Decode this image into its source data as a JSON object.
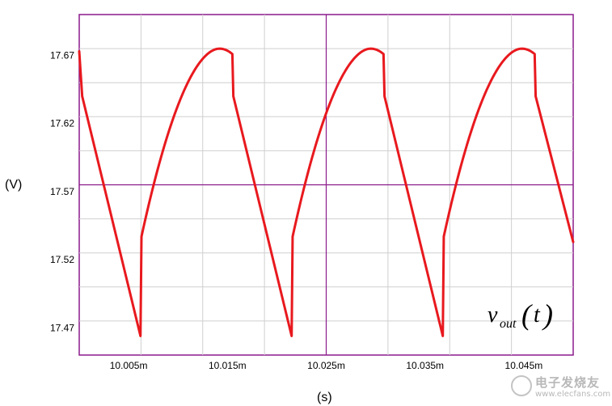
{
  "chart_data": {
    "type": "line",
    "title": "",
    "xlabel": "(s)",
    "ylabel": "(V)",
    "xlim": [
      0.01,
      0.01005
    ],
    "ylim": [
      17.45,
      17.7
    ],
    "x_ticks": [
      0.010005,
      0.010015,
      0.010025,
      0.010035,
      0.010045
    ],
    "x_tick_labels": [
      "10.005m",
      "10.015m",
      "10.025m",
      "10.035m",
      "10.045m"
    ],
    "y_ticks": [
      17.47,
      17.52,
      17.57,
      17.62,
      17.67
    ],
    "y_tick_labels": [
      "17.47",
      "17.52",
      "17.57",
      "17.62",
      "17.67"
    ],
    "grid": true,
    "series": [
      {
        "name": "",
        "color": "#e8191e",
        "segments": [
          {
            "x": [
              0.01,
              0.0100003
            ],
            "y": [
              17.673,
              17.64
            ]
          },
          {
            "x": [
              0.0100003,
              0.0100062
            ],
            "y": [
              17.64,
              17.464
            ],
            "shape": "linear"
          },
          {
            "x": [
              0.0100062,
              0.0100063
            ],
            "y": [
              17.464,
              17.537
            ]
          },
          {
            "x": [
              0.0100063,
              0.0100142,
              0.0100155
            ],
            "y": [
              17.537,
              17.675,
              17.671
            ],
            "shape": "rise"
          },
          {
            "x": [
              0.0100155,
              0.0100156
            ],
            "y": [
              17.671,
              17.64
            ]
          },
          {
            "x": [
              0.0100156,
              0.0100215
            ],
            "y": [
              17.64,
              17.464
            ],
            "shape": "linear"
          },
          {
            "x": [
              0.0100215,
              0.0100216
            ],
            "y": [
              17.464,
              17.537
            ]
          },
          {
            "x": [
              0.0100216,
              0.0100295,
              0.0100308
            ],
            "y": [
              17.537,
              17.675,
              17.671
            ],
            "shape": "rise"
          },
          {
            "x": [
              0.0100308,
              0.0100309
            ],
            "y": [
              17.671,
              17.64
            ]
          },
          {
            "x": [
              0.0100309,
              0.0100368
            ],
            "y": [
              17.64,
              17.464
            ],
            "shape": "linear"
          },
          {
            "x": [
              0.0100368,
              0.0100369
            ],
            "y": [
              17.464,
              17.537
            ]
          },
          {
            "x": [
              0.0100369,
              0.0100448,
              0.0100461
            ],
            "y": [
              17.537,
              17.675,
              17.671
            ],
            "shape": "rise"
          },
          {
            "x": [
              0.0100461,
              0.0100462
            ],
            "y": [
              17.671,
              17.64
            ]
          },
          {
            "x": [
              0.0100462,
              0.01005
            ],
            "y": [
              17.64,
              17.533
            ],
            "shape": "linear"
          }
        ]
      }
    ],
    "legend_label": {
      "base": "v",
      "subscript": "out",
      "arg": "t"
    }
  },
  "watermark": {
    "chinese": "电子发烧友",
    "url": "www.elecfans.com"
  }
}
